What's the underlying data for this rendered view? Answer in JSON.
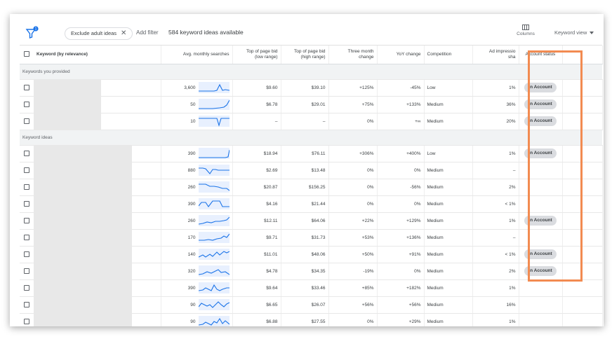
{
  "toolbar": {
    "filter_badge": "1",
    "chip_label": "Exclude adult ideas",
    "chip_close": "✕",
    "add_filter": "Add filter",
    "ideas_count": "584 keyword ideas available",
    "columns_label": "Columns",
    "view_label": "Keyword view"
  },
  "colors": {
    "accent": "#1a73e8",
    "highlight": "#f28b51",
    "pill": "#dadce0"
  },
  "table": {
    "headers": {
      "keyword": "Keyword (by relevance)",
      "avg": "Avg. monthly searches",
      "bid_low_1": "Top of page bid",
      "bid_low_2": "(low range)",
      "bid_high_1": "Top of page bid",
      "bid_high_2": "(high range)",
      "three_1": "Three month",
      "three_2": "change",
      "yoy": "YoY change",
      "competition": "Competition",
      "impr_1": "Ad impressio",
      "impr_2": "sha",
      "account": "Account status"
    },
    "group_provided": "Keywords you provided",
    "group_ideas": "Keyword ideas",
    "provided": [
      {
        "avg": "3,600",
        "low": "$9.60",
        "high": "$39.10",
        "three": "+125%",
        "yoy": "-45%",
        "comp": "Low",
        "impr": "1%",
        "account": "In Account"
      },
      {
        "avg": "50",
        "low": "$6.78",
        "high": "$29.01",
        "three": "+75%",
        "yoy": "+133%",
        "comp": "Medium",
        "impr": "36%",
        "account": "In Account"
      },
      {
        "avg": "10",
        "low": "–",
        "high": "–",
        "three": "0%",
        "yoy": "+∞",
        "comp": "Medium",
        "impr": "20%",
        "account": "In Account"
      }
    ],
    "ideas": [
      {
        "avg": "390",
        "low": "$18.94",
        "high": "$76.11",
        "three": "+306%",
        "yoy": "+400%",
        "comp": "Low",
        "impr": "1%",
        "account": "In Account"
      },
      {
        "avg": "880",
        "low": "$2.69",
        "high": "$13.48",
        "three": "0%",
        "yoy": "0%",
        "comp": "Medium",
        "impr": "–",
        "account": ""
      },
      {
        "avg": "260",
        "low": "$20.87",
        "high": "$156.25",
        "three": "0%",
        "yoy": "-56%",
        "comp": "Medium",
        "impr": "2%",
        "account": ""
      },
      {
        "avg": "390",
        "low": "$4.16",
        "high": "$21.44",
        "three": "0%",
        "yoy": "0%",
        "comp": "Medium",
        "impr": "< 1%",
        "account": ""
      },
      {
        "avg": "260",
        "low": "$12.11",
        "high": "$64.06",
        "three": "+22%",
        "yoy": "+129%",
        "comp": "Medium",
        "impr": "1%",
        "account": "In Account"
      },
      {
        "avg": "170",
        "low": "$9.71",
        "high": "$31.73",
        "three": "+53%",
        "yoy": "+136%",
        "comp": "Medium",
        "impr": "–",
        "account": ""
      },
      {
        "avg": "140",
        "low": "$11.01",
        "high": "$48.06",
        "three": "+50%",
        "yoy": "+91%",
        "comp": "Medium",
        "impr": "< 1%",
        "account": "In Account"
      },
      {
        "avg": "320",
        "low": "$4.78",
        "high": "$34.35",
        "three": "-19%",
        "yoy": "0%",
        "comp": "Medium",
        "impr": "2%",
        "account": "In Account"
      },
      {
        "avg": "390",
        "low": "$9.64",
        "high": "$33.46",
        "three": "+85%",
        "yoy": "+182%",
        "comp": "Medium",
        "impr": "1%",
        "account": ""
      },
      {
        "avg": "90",
        "low": "$6.65",
        "high": "$26.07",
        "three": "+56%",
        "yoy": "+56%",
        "comp": "Medium",
        "impr": "16%",
        "account": ""
      },
      {
        "avg": "90",
        "low": "$6.88",
        "high": "$27.55",
        "three": "0%",
        "yoy": "+29%",
        "comp": "Medium",
        "impr": "1%",
        "account": ""
      }
    ]
  }
}
